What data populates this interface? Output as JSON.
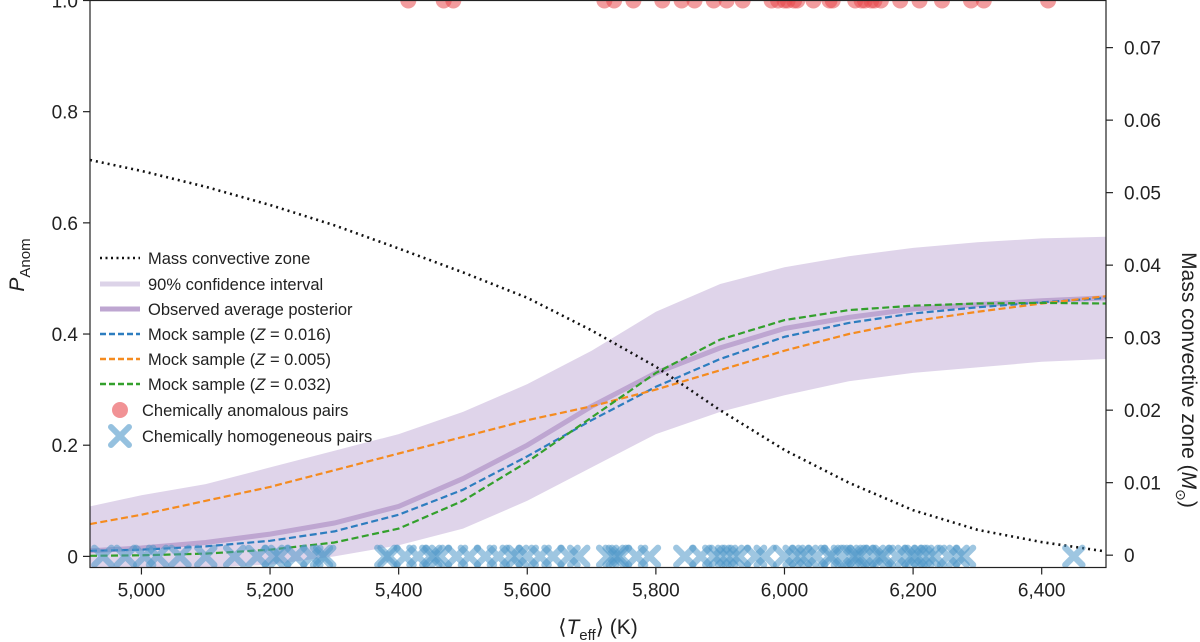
{
  "chart_data": {
    "type": "line",
    "xlabel": {
      "pre": "⟨",
      "main": "T",
      "sub": "eff",
      "post": "⟩ (K)"
    },
    "ylabel": {
      "main": "P",
      "sub": "Anom"
    },
    "y2label": {
      "pre": "Mass convective zone (",
      "main": "M",
      "sub": "⊙",
      "post": ")"
    },
    "xlim": [
      4920,
      6500
    ],
    "ylim": [
      -0.02,
      1.0
    ],
    "y2lim": [
      -0.0017,
      0.0765
    ],
    "x_ticks": [
      5000,
      5200,
      5400,
      5600,
      5800,
      6000,
      6200,
      6400
    ],
    "x_tick_labels": [
      "5,000",
      "5,200",
      "5,400",
      "5,600",
      "5,800",
      "6,000",
      "6,200",
      "6,400"
    ],
    "y_ticks": [
      0,
      0.2,
      0.4,
      0.6,
      0.8,
      1.0
    ],
    "y_tick_labels": [
      "0",
      "0.2",
      "0.4",
      "0.6",
      "0.8",
      "1.0"
    ],
    "y2_ticks": [
      0,
      0.01,
      0.02,
      0.03,
      0.04,
      0.05,
      0.06,
      0.07
    ],
    "y2_tick_labels": [
      "0",
      "0.01",
      "0.02",
      "0.03",
      "0.04",
      "0.05",
      "0.06",
      "0.07"
    ],
    "grid": false,
    "legend_position": "middle-left",
    "colors": {
      "ci_fill": "#d9cde6",
      "posterior": "#bea6d1",
      "z016": "#2d7dbf",
      "z005": "#f58b1f",
      "z032": "#33a02c",
      "anomalous": "#e84a4f",
      "homogeneous": "#4f97c9",
      "mcz": "#111111"
    },
    "legend": [
      {
        "label": "Mass convective zone",
        "style": "mcz"
      },
      {
        "label": "90% confidence interval",
        "style": "ci"
      },
      {
        "label": "Observed average posterior",
        "style": "posterior"
      },
      {
        "label": "Mock sample (",
        "z": "Z",
        "rest": " = 0.016)",
        "style": "z016"
      },
      {
        "label": "Mock sample (",
        "z": "Z",
        "rest": " = 0.005)",
        "style": "z005"
      },
      {
        "label": "Mock sample (",
        "z": "Z",
        "rest": " = 0.032)",
        "style": "z032"
      },
      {
        "label": "Chemically anomalous pairs",
        "style": "anomalous"
      },
      {
        "label": "Chemically homogeneous pairs",
        "style": "homogeneous"
      }
    ],
    "series": [
      {
        "name": "Mass convective zone",
        "axis": "right",
        "x": [
          4920,
          5000,
          5100,
          5200,
          5300,
          5400,
          5500,
          5600,
          5700,
          5800,
          5900,
          6000,
          6100,
          6200,
          6300,
          6400,
          6500
        ],
        "y": [
          0.0545,
          0.053,
          0.0508,
          0.0483,
          0.0455,
          0.0423,
          0.039,
          0.0355,
          0.031,
          0.026,
          0.02,
          0.0145,
          0.01,
          0.0062,
          0.0035,
          0.0018,
          0.0005
        ]
      },
      {
        "name": "90% confidence interval",
        "kind": "band",
        "x": [
          4920,
          5000,
          5100,
          5200,
          5300,
          5400,
          5500,
          5600,
          5700,
          5800,
          5900,
          6000,
          6100,
          6200,
          6300,
          6400,
          6500
        ],
        "lower": [
          -0.02,
          -0.02,
          -0.02,
          -0.015,
          0.0,
          0.02,
          0.05,
          0.1,
          0.16,
          0.22,
          0.26,
          0.29,
          0.315,
          0.33,
          0.34,
          0.35,
          0.355
        ],
        "upper": [
          0.09,
          0.11,
          0.13,
          0.16,
          0.19,
          0.22,
          0.26,
          0.31,
          0.37,
          0.44,
          0.49,
          0.52,
          0.54,
          0.555,
          0.565,
          0.572,
          0.575
        ]
      },
      {
        "name": "Observed average posterior",
        "x": [
          4920,
          5000,
          5100,
          5200,
          5300,
          5400,
          5500,
          5600,
          5700,
          5800,
          5900,
          6000,
          6100,
          6200,
          6300,
          6400,
          6500
        ],
        "y": [
          0.01,
          0.015,
          0.025,
          0.04,
          0.06,
          0.09,
          0.14,
          0.2,
          0.27,
          0.33,
          0.375,
          0.41,
          0.43,
          0.445,
          0.453,
          0.46,
          0.465
        ]
      },
      {
        "name": "Mock sample (Z = 0.016)",
        "x": [
          4920,
          5000,
          5100,
          5200,
          5300,
          5400,
          5500,
          5600,
          5700,
          5800,
          5900,
          6000,
          6100,
          6200,
          6300,
          6400,
          6500
        ],
        "y": [
          0.01,
          0.012,
          0.018,
          0.028,
          0.045,
          0.075,
          0.12,
          0.18,
          0.245,
          0.305,
          0.355,
          0.395,
          0.42,
          0.437,
          0.448,
          0.457,
          0.465
        ]
      },
      {
        "name": "Mock sample (Z = 0.005)",
        "x": [
          4920,
          5000,
          5100,
          5200,
          5300,
          5400,
          5500,
          5600,
          5700,
          5800,
          5900,
          6000,
          6100,
          6200,
          6300,
          6400,
          6500
        ],
        "y": [
          0.058,
          0.075,
          0.1,
          0.125,
          0.155,
          0.185,
          0.215,
          0.245,
          0.27,
          0.3,
          0.335,
          0.37,
          0.4,
          0.423,
          0.44,
          0.455,
          0.468
        ]
      },
      {
        "name": "Mock sample (Z = 0.032)",
        "x": [
          4920,
          5000,
          5100,
          5200,
          5300,
          5400,
          5500,
          5600,
          5700,
          5800,
          5900,
          6000,
          6100,
          6200,
          6300,
          6400,
          6500
        ],
        "y": [
          0.001,
          0.002,
          0.005,
          0.012,
          0.025,
          0.05,
          0.1,
          0.17,
          0.25,
          0.33,
          0.39,
          0.425,
          0.443,
          0.451,
          0.455,
          0.456,
          0.455
        ]
      }
    ],
    "anomalous_pairs": {
      "y": 1.0,
      "x": [
        5415,
        5470,
        5485,
        5720,
        5735,
        5765,
        5810,
        5840,
        5860,
        5890,
        5910,
        5935,
        5980,
        5990,
        6000,
        6005,
        6015,
        6020,
        6045,
        6070,
        6075,
        6110,
        6120,
        6125,
        6135,
        6140,
        6150,
        6180,
        6210,
        6245,
        6290,
        6310,
        6410
      ]
    },
    "homogeneous_pairs": {
      "y": 0.0,
      "x": [
        4940,
        4975,
        5005,
        5025,
        5060,
        5100,
        5145,
        5180,
        5205,
        5215,
        5240,
        5265,
        5280,
        5285,
        5380,
        5385,
        5410,
        5430,
        5450,
        5455,
        5465,
        5490,
        5510,
        5535,
        5555,
        5575,
        5585,
        5600,
        5620,
        5640,
        5665,
        5680,
        5725,
        5735,
        5740,
        5745,
        5770,
        5790,
        5845,
        5870,
        5890,
        5900,
        5910,
        5920,
        5930,
        5955,
        5970,
        6000,
        6015,
        6025,
        6035,
        6050,
        6070,
        6075,
        6090,
        6105,
        6110,
        6115,
        6125,
        6140,
        6150,
        6155,
        6175,
        6190,
        6200,
        6205,
        6215,
        6225,
        6235,
        6255,
        6270,
        6280,
        6450
      ]
    }
  }
}
